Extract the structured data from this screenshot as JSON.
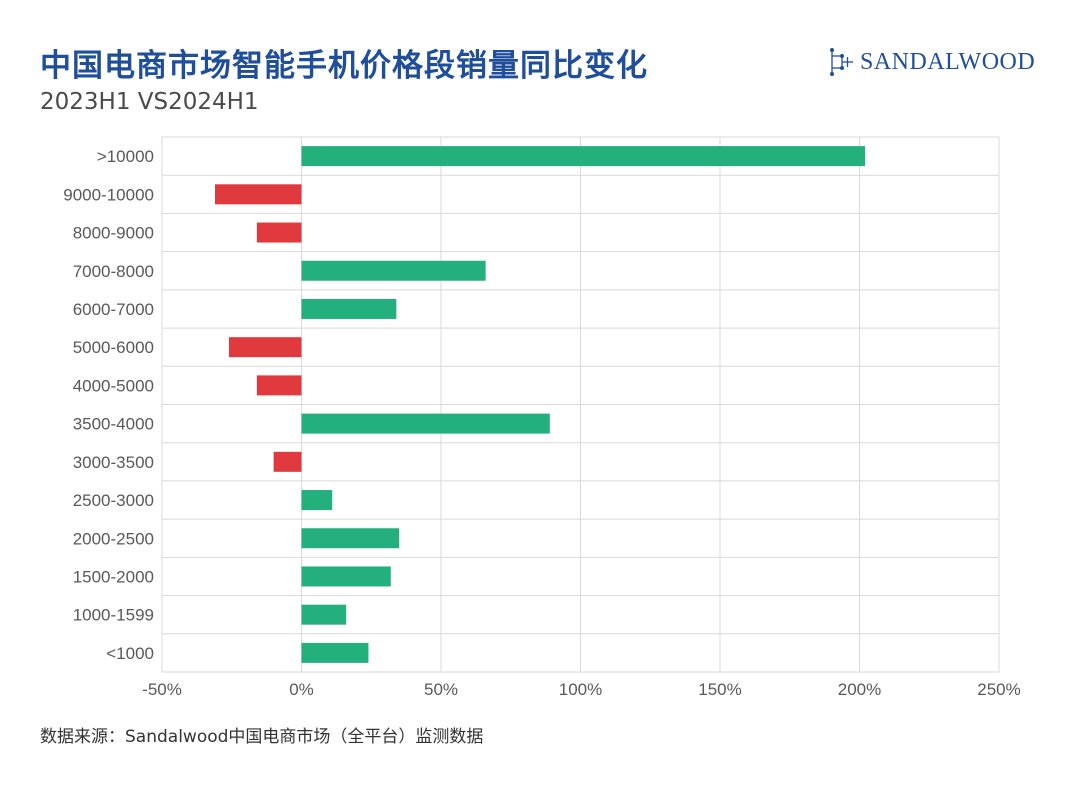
{
  "header": {
    "title": "中国电商市场智能手机价格段销量同比变化",
    "subtitle": "2023H1 VS2024H1",
    "logo_text": "SANDALWOOD"
  },
  "footer": {
    "source": "数据来源：Sandalwood中国电商市场（全平台）监测数据"
  },
  "colors": {
    "positive": "#23b07d",
    "negative": "#e03a3e",
    "title": "#1f4e9a",
    "grid": "#d9d9d9",
    "axis_label": "#595959"
  },
  "chart_data": {
    "type": "bar",
    "orientation": "horizontal",
    "title": "中国电商市场智能手机价格段销量同比变化",
    "subtitle": "2023H1 VS2024H1",
    "categories": [
      ">10000",
      "9000-10000",
      "8000-9000",
      "7000-8000",
      "6000-7000",
      "5000-6000",
      "4000-5000",
      "3500-4000",
      "3000-3500",
      "2500-3000",
      "2000-2500",
      "1500-2000",
      "1000-1599",
      "<1000"
    ],
    "values": [
      202,
      -31,
      -16,
      66,
      34,
      -26,
      -16,
      89,
      -10,
      11,
      35,
      32,
      16,
      24
    ],
    "xlim": [
      -50,
      250
    ],
    "xticks": [
      -50,
      0,
      50,
      100,
      150,
      200,
      250
    ],
    "xtick_labels": [
      "-50%",
      "0%",
      "50%",
      "100%",
      "150%",
      "200%",
      "250%"
    ],
    "grid": true
  }
}
